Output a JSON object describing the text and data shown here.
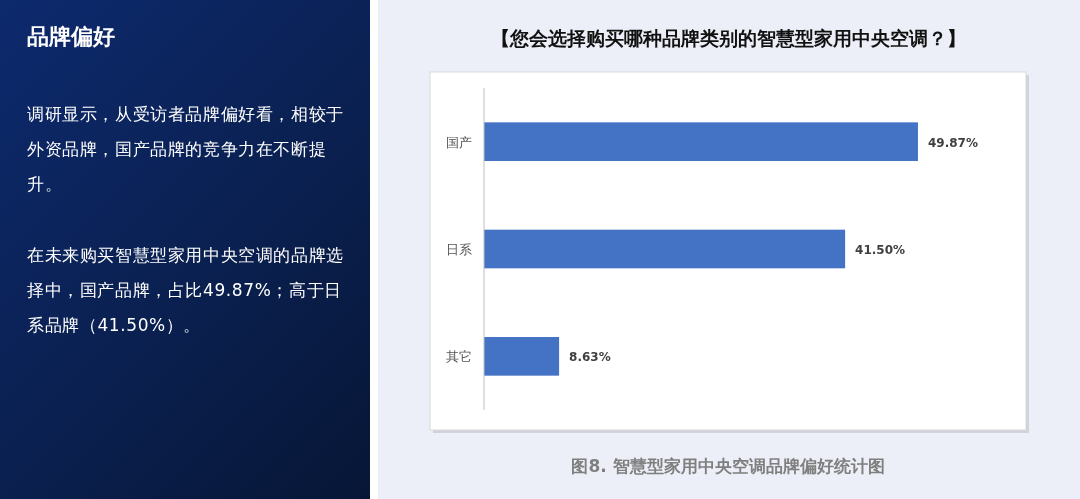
{
  "chart_data": [
    {
      "type": "other",
      "title": "品牌偏好",
      "annotations": [
        "调研显示，从受访者品牌偏好看，相较于外资品牌，国产品牌的竞争力在不断提升。",
        "在未来购买智慧型家用中央空调的品牌选择中，国产品牌，占比49.87%；高于日系品牌（41.50%）。"
      ]
    },
    {
      "type": "bar",
      "orientation": "horizontal",
      "title": "【您会选择购买哪种品牌类别的智慧型家用中央空调？】",
      "categories": [
        "国产",
        "日系",
        "其它"
      ],
      "values": [
        49.87,
        41.5,
        8.63
      ],
      "color": "#4472c4",
      "value_labels": [
        "49.87%",
        "41.50%",
        "8.63%"
      ],
      "annotations": [
        "图8. 智慧型家用中央空调品牌偏好统计图"
      ]
    }
  ]
}
